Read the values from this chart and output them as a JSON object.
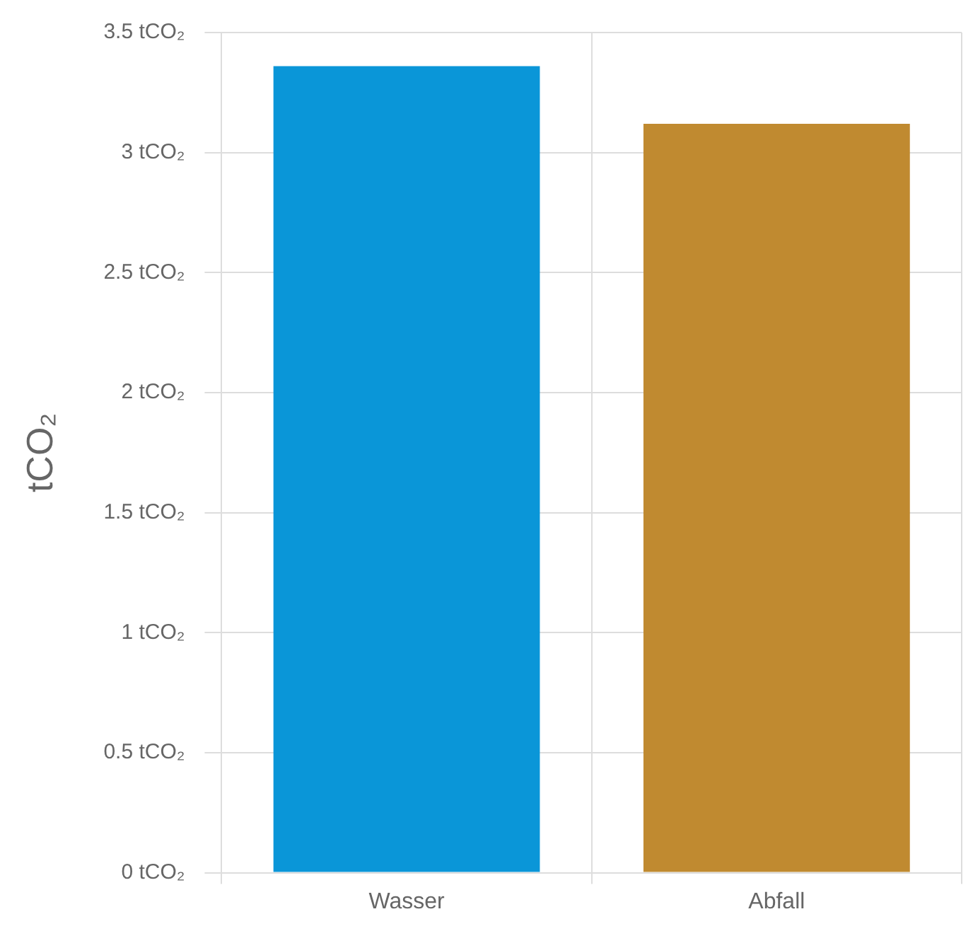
{
  "chart_data": {
    "type": "bar",
    "ylabel": "tCO₂",
    "categories": [
      "Wasser",
      "Abfall"
    ],
    "series": [
      {
        "values": [
          3.36,
          3.12
        ],
        "colors": [
          "#0a96d8",
          "#c08a30"
        ]
      }
    ],
    "ylim": [
      0,
      3.5
    ],
    "yticks": [
      {
        "value": 0,
        "label": "0 tCO₂"
      },
      {
        "value": 0.5,
        "label": "0.5 tCO₂"
      },
      {
        "value": 1,
        "label": "1 tCO₂"
      },
      {
        "value": 1.5,
        "label": "1.5 tCO₂"
      },
      {
        "value": 2,
        "label": "2 tCO₂"
      },
      {
        "value": 2.5,
        "label": "2.5 tCO₂"
      },
      {
        "value": 3,
        "label": "3 tCO₂"
      },
      {
        "value": 3.5,
        "label": "3.5 tCO₂"
      }
    ],
    "grid": true,
    "legend": false
  }
}
